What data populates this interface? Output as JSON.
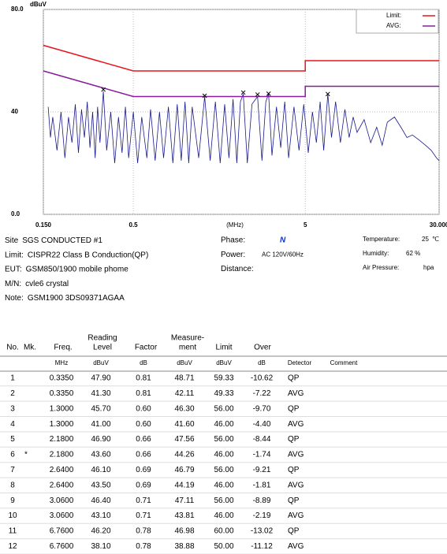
{
  "chart_data": {
    "type": "line",
    "y_label": "dBuV",
    "x_label": "(MHz)",
    "xscale": "log",
    "grid": true,
    "xlim": [
      0.15,
      30
    ],
    "ylim": [
      0,
      80
    ],
    "xticks": [
      {
        "value": 0.15,
        "label": "0.150"
      },
      0.5,
      5,
      {
        "value": 30,
        "label": "30.000"
      }
    ],
    "yticks": [
      {
        "value": 0,
        "label": "0.0"
      },
      40,
      {
        "value": 80,
        "label": "80.0"
      }
    ],
    "legend": "upper right",
    "series": [
      {
        "name": "Limit:",
        "color": "#e8141c",
        "x": [
          0.15,
          0.5,
          5,
          5,
          30
        ],
        "values": [
          66,
          56,
          56,
          60,
          60
        ]
      },
      {
        "name": "AVG:",
        "color": "#8a1aa0",
        "x": [
          0.15,
          0.5,
          5,
          5,
          30
        ],
        "values": [
          56,
          46,
          46,
          50,
          50
        ]
      }
    ],
    "trace": {
      "color": "#1a1a8c",
      "x": [
        0.16,
        0.165,
        0.17,
        0.18,
        0.19,
        0.2,
        0.21,
        0.22,
        0.23,
        0.24,
        0.25,
        0.26,
        0.27,
        0.28,
        0.29,
        0.3,
        0.31,
        0.32,
        0.335,
        0.35,
        0.37,
        0.39,
        0.41,
        0.43,
        0.45,
        0.47,
        0.5,
        0.53,
        0.56,
        0.6,
        0.63,
        0.67,
        0.71,
        0.75,
        0.8,
        0.85,
        0.9,
        0.95,
        1.0,
        1.05,
        1.1,
        1.2,
        1.3,
        1.4,
        1.5,
        1.6,
        1.7,
        1.8,
        1.9,
        2.0,
        2.1,
        2.18,
        2.3,
        2.45,
        2.64,
        2.8,
        2.95,
        3.06,
        3.2,
        3.4,
        3.6,
        3.8,
        4.0,
        4.3,
        4.6,
        4.9,
        5.2,
        5.5,
        5.8,
        6.1,
        6.4,
        6.76,
        7.1,
        7.5,
        8,
        8.5,
        9,
        9.5,
        10,
        11,
        12,
        13,
        14,
        15,
        16.5,
        18,
        19.5,
        21,
        23,
        25,
        27,
        29,
        30
      ],
      "values": [
        42,
        30,
        38,
        25,
        40,
        22,
        38,
        28,
        43,
        24,
        41,
        30,
        44,
        26,
        40,
        22,
        42,
        28,
        48,
        25,
        40,
        20,
        38,
        24,
        42,
        22,
        40,
        20,
        38,
        22,
        41,
        21,
        40,
        22,
        42,
        20,
        43,
        21,
        44,
        20,
        42,
        22,
        46,
        21,
        44,
        20,
        43,
        22,
        45,
        20,
        44,
        47,
        20,
        43,
        46,
        21,
        44,
        47,
        23,
        42,
        26,
        44,
        22,
        42,
        25,
        43,
        24,
        40,
        28,
        44,
        25,
        47,
        30,
        44,
        28,
        41,
        30,
        38,
        32,
        37,
        28,
        34,
        27,
        36,
        38,
        34,
        30,
        31,
        29,
        27,
        25,
        22,
        21
      ]
    }
  },
  "info": {
    "left": [
      [
        "Site",
        "SGS CONDUCTED #1"
      ],
      [
        "Limit:",
        "CISPR22 Class B Conduction(QP)"
      ],
      [
        "EUT:",
        "GSM850/1900 mobile phome"
      ],
      [
        "M/N:",
        "cvle6 crystal"
      ],
      [
        "Note:",
        "GSM1900 3DS09371AGAA"
      ]
    ],
    "middle": [
      [
        "Phase:",
        "N"
      ],
      [
        "Power:",
        "AC 120V/60Hz"
      ],
      [
        "Distance:"
      ]
    ],
    "right": [
      [
        "Temperature:",
        "25",
        "℃"
      ],
      [
        "Humidity:",
        "62 %"
      ],
      [
        "Air Pressure:",
        "hpa"
      ]
    ]
  },
  "table": {
    "header": [
      [
        "No."
      ],
      [
        "Mk."
      ],
      [
        "Freq."
      ],
      [
        "Reading",
        "Level"
      ],
      [
        "Factor"
      ],
      [
        "Measure-",
        "ment"
      ],
      [
        "Limit"
      ],
      [
        "Over"
      ]
    ],
    "units": [
      "MHz",
      "dBuV",
      "dB",
      "dBuV",
      "dBuV",
      "dB",
      "Detector",
      "Comment"
    ],
    "rows": [
      {
        "no": "1",
        "freq": "0.3350",
        "reading": "47.90",
        "factor": "0.81",
        "measurement": "48.71",
        "limit": "59.33",
        "over": "-10.62",
        "detector": "QP"
      },
      {
        "no": "2",
        "freq": "0.3350",
        "reading": "41.30",
        "factor": "0.81",
        "measurement": "42.11",
        "limit": "49.33",
        "over": "-7.22",
        "detector": "AVG"
      },
      {
        "no": "3",
        "freq": "1.3000",
        "reading": "45.70",
        "factor": "0.60",
        "measurement": "46.30",
        "limit": "56.00",
        "over": "-9.70",
        "detector": "QP"
      },
      {
        "no": "4",
        "freq": "1.3000",
        "reading": "41.00",
        "factor": "0.60",
        "measurement": "41.60",
        "limit": "46.00",
        "over": "-4.40",
        "detector": "AVG"
      },
      {
        "no": "5",
        "freq": "2.1800",
        "reading": "46.90",
        "factor": "0.66",
        "measurement": "47.56",
        "limit": "56.00",
        "over": "-8.44",
        "detector": "QP"
      },
      {
        "no": "6",
        "mk": "*",
        "freq": "2.1800",
        "reading": "43.60",
        "factor": "0.66",
        "measurement": "44.26",
        "limit": "46.00",
        "over": "-1.74",
        "detector": "AVG"
      },
      {
        "no": "7",
        "freq": "2.6400",
        "reading": "46.10",
        "factor": "0.69",
        "measurement": "46.79",
        "limit": "56.00",
        "over": "-9.21",
        "detector": "QP"
      },
      {
        "no": "8",
        "freq": "2.6400",
        "reading": "43.50",
        "factor": "0.69",
        "measurement": "44.19",
        "limit": "46.00",
        "over": "-1.81",
        "detector": "AVG"
      },
      {
        "no": "9",
        "freq": "3.0600",
        "reading": "46.40",
        "factor": "0.71",
        "measurement": "47.11",
        "limit": "56.00",
        "over": "-8.89",
        "detector": "QP"
      },
      {
        "no": "10",
        "freq": "3.0600",
        "reading": "43.10",
        "factor": "0.71",
        "measurement": "43.81",
        "limit": "46.00",
        "over": "-2.19",
        "detector": "AVG"
      },
      {
        "no": "11",
        "freq": "6.7600",
        "reading": "46.20",
        "factor": "0.78",
        "measurement": "46.98",
        "limit": "60.00",
        "over": "-13.02",
        "detector": "QP"
      },
      {
        "no": "12",
        "freq": "6.7600",
        "reading": "38.10",
        "factor": "0.78",
        "measurement": "38.88",
        "limit": "50.00",
        "over": "-11.12",
        "detector": "AVG"
      }
    ]
  }
}
